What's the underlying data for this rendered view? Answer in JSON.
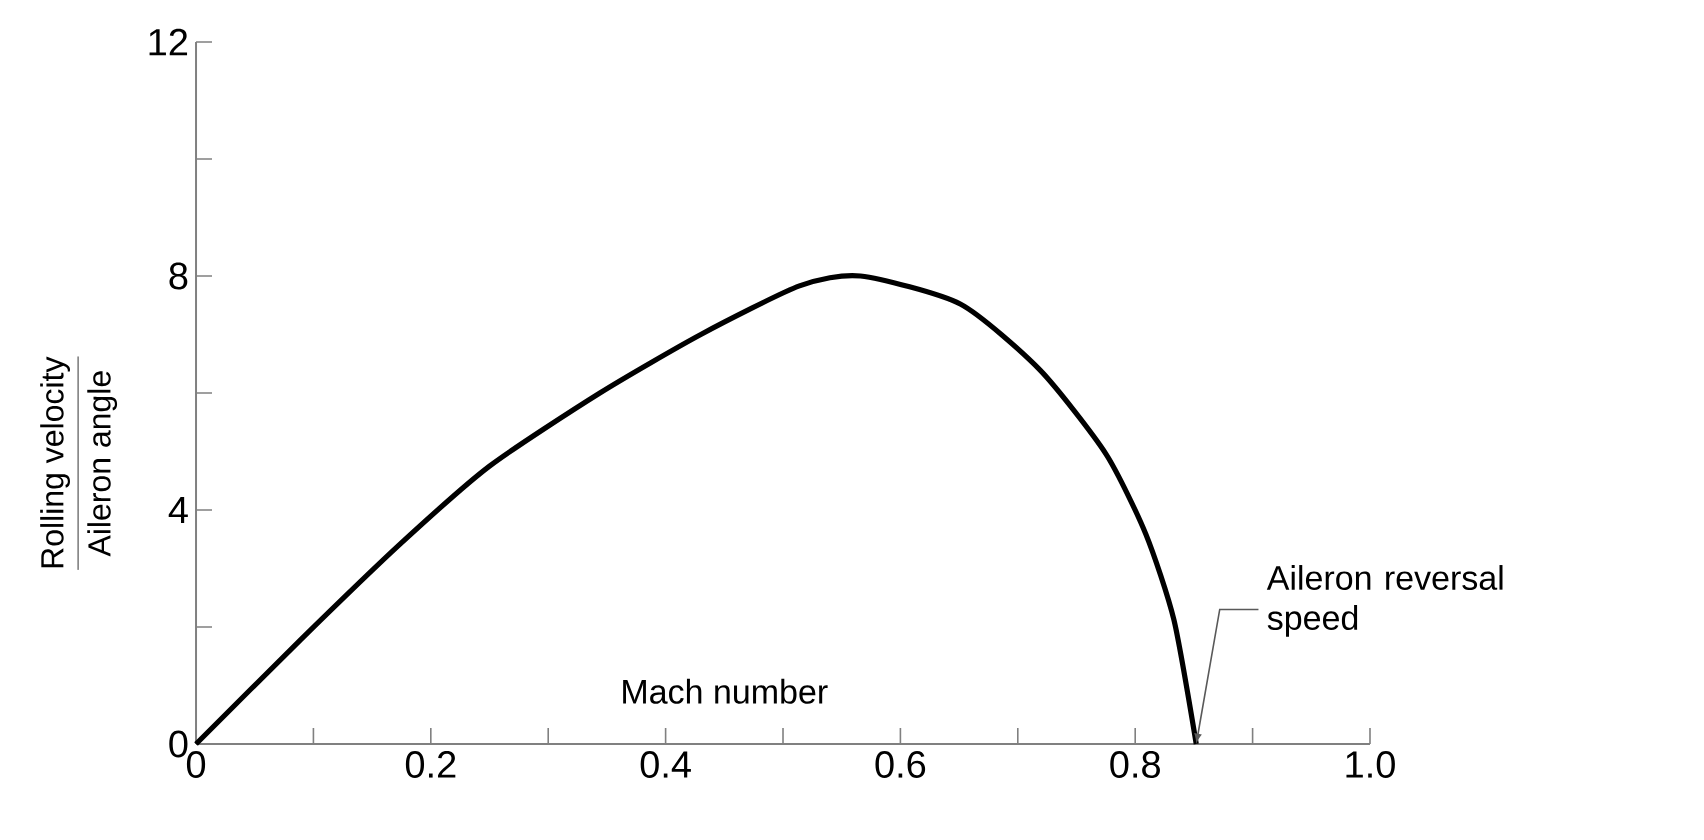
{
  "chart_data": {
    "type": "line",
    "ylabel": "\\frac{\\mbox{Rolling velocity}}{\\mbox{Aileron angle}}",
    "xlabel": "Mach number",
    "annotations": [
      {
        "text": "Aileron reversal speed",
        "x": 0.852,
        "y": 0
      }
    ],
    "x": [
      0,
      0.089,
      0.174,
      0.25,
      0.344,
      0.43,
      0.514,
      0.566,
      0.651,
      0.719,
      0.775,
      0.809,
      0.833,
      0.852
    ],
    "series": [
      {
        "color": "#000000",
        "values": [
          0,
          1.78,
          3.42,
          4.75,
          6.0,
          7.0,
          7.83,
          8.0,
          7.52,
          6.39,
          4.96,
          3.59,
          2.12,
          0
        ]
      }
    ],
    "xlim": [
      0,
      1.0
    ],
    "xticks": [
      0,
      {
        "value": 0.1,
        "label": null
      },
      0.2,
      {
        "value": 0.3,
        "label": null
      },
      0.4,
      {
        "value": 0.5,
        "label": null
      },
      0.6,
      {
        "value": 0.7,
        "label": null
      },
      0.8,
      {
        "value": 0.9,
        "label": null
      },
      {
        "value": 1.0,
        "label": "1.0"
      }
    ],
    "ylim": [
      0,
      12
    ],
    "yticks": [
      0,
      {
        "value": 2,
        "label": null
      },
      4,
      {
        "value": 6,
        "label": null
      },
      8,
      {
        "value": 10,
        "label": null
      },
      12
    ],
    "grid": false,
    "marker": "none",
    "line_style": "solid"
  }
}
